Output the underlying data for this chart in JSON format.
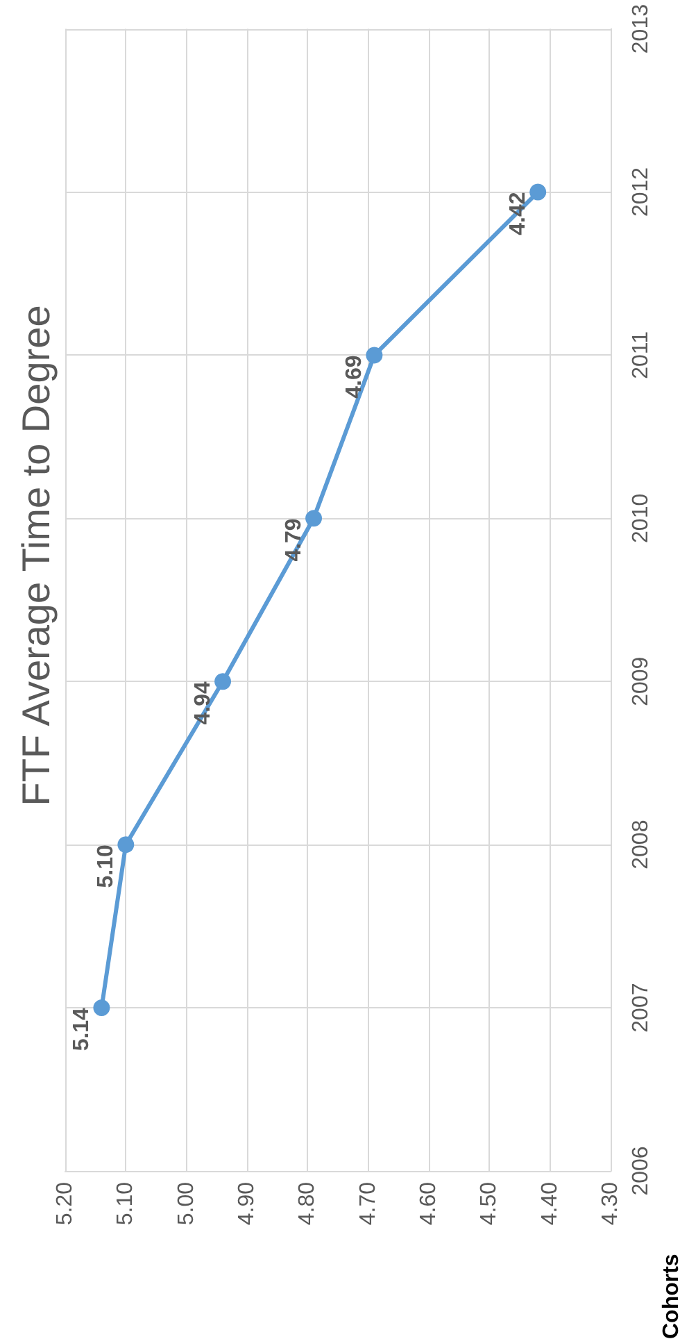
{
  "chart_data": {
    "type": "line",
    "title": "FTF Average Time to Degree",
    "ylabel": "Cohorts",
    "x": [
      5.14,
      5.1,
      4.94,
      4.79,
      4.69,
      4.42
    ],
    "series": [
      {
        "color": "#5b9bd5",
        "values": [
          2007,
          2008,
          2009,
          2010,
          2011,
          2012
        ]
      }
    ],
    "annotations": [
      {
        "text": "5.14",
        "x": 5.14,
        "y": 2007
      },
      {
        "text": "5.10",
        "x": 5.1,
        "y": 2008
      },
      {
        "text": "4.94",
        "x": 4.94,
        "y": 2009
      },
      {
        "text": "4.79",
        "x": 4.79,
        "y": 2010
      },
      {
        "text": "4.69",
        "x": 4.69,
        "y": 2011
      },
      {
        "text": "4.42",
        "x": 4.42,
        "y": 2012
      }
    ],
    "ylim": [
      2006,
      2013
    ],
    "yticks": [
      2006,
      2007,
      2008,
      2009,
      2010,
      2011,
      2012,
      2013
    ],
    "xlim": [
      5.2,
      4.3
    ],
    "xticks": [
      {
        "value": 5.2,
        "label": "5.20"
      },
      {
        "value": 5.1,
        "label": "5.10"
      },
      {
        "value": 5.0,
        "label": "5.00"
      },
      {
        "value": 4.9,
        "label": "4.90"
      },
      {
        "value": 4.8,
        "label": "4.80"
      },
      {
        "value": 4.7,
        "label": "4.70"
      },
      {
        "value": 4.6,
        "label": "4.60"
      },
      {
        "value": 4.5,
        "label": "4.50"
      },
      {
        "value": 4.4,
        "label": "4.40"
      },
      {
        "value": 4.3,
        "label": "4.30"
      }
    ],
    "grid": true,
    "marker": "circle",
    "line_style": "solid"
  }
}
